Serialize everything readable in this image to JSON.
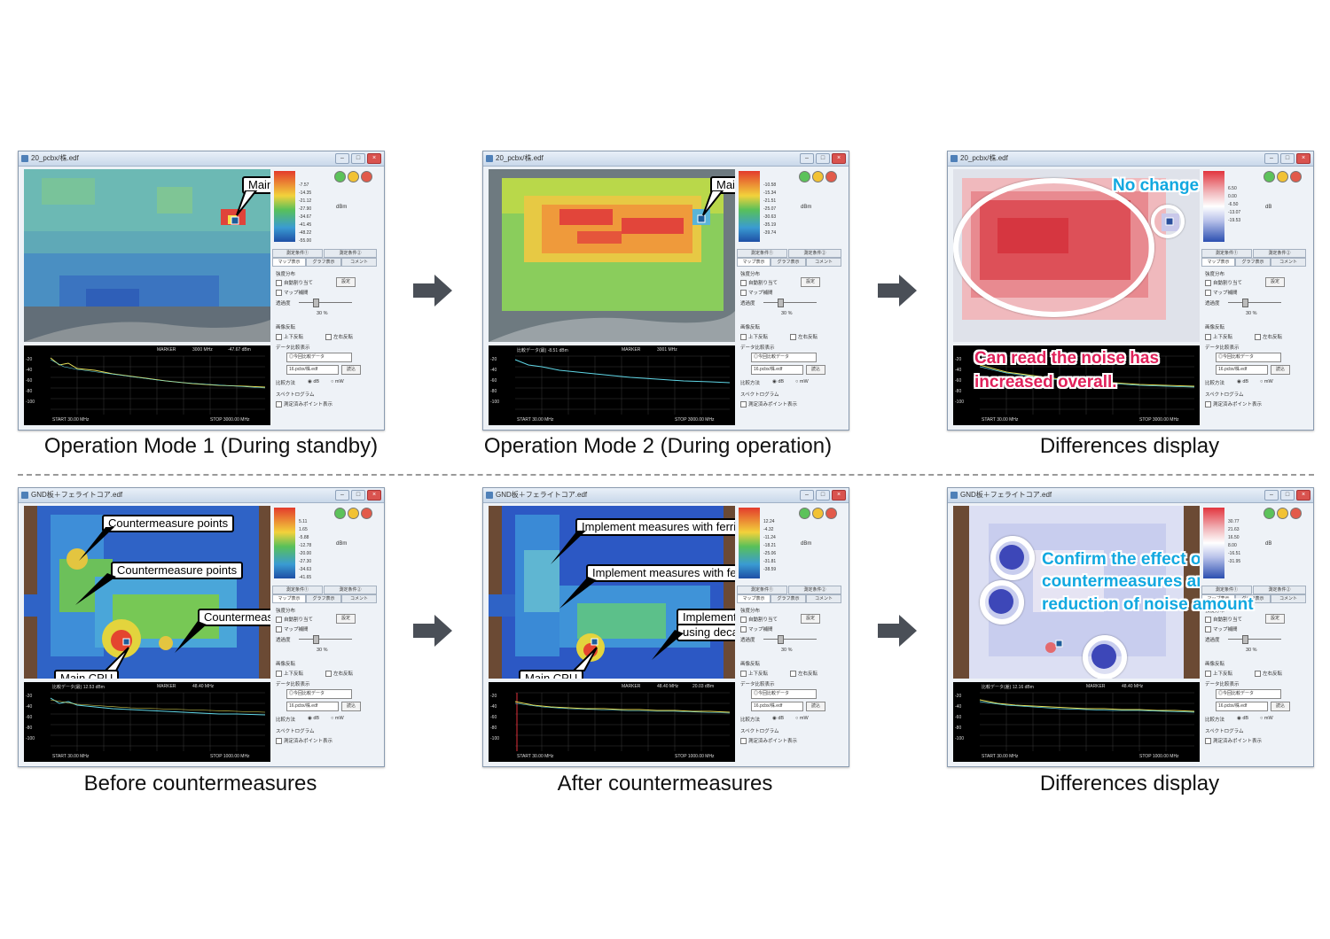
{
  "top_row": {
    "win1": {
      "title": "20_pcbx/株.edf",
      "caption": "Operation Mode 1 (During standby)",
      "callout": "Main CPU",
      "legend_vals": [
        "-7.57",
        "-14.35",
        "-21.12",
        "-27.90",
        "-34.67",
        "-41.45",
        "-48.22",
        "-55.00"
      ],
      "unit": "dBm",
      "spec_top": [
        "MARKER",
        "3000 MHz",
        "-47.67 dBm"
      ],
      "spec_bottom": [
        "START  30.00 MHz",
        "STOP  3000.00 MHz"
      ]
    },
    "win2": {
      "title": "20_pcbx/株.edf",
      "caption": "Operation Mode 2 (During operation)",
      "callout": "Main CPU",
      "legend_vals": [
        "-10.58",
        "-15.34",
        "-21.51",
        "-25.07",
        "-30.63",
        "-35.19",
        "-39.74"
      ],
      "unit": "dBm",
      "spec_top": [
        "比較データ(最)  -8.51 dBm",
        "MARKER",
        "3001 MHz"
      ],
      "spec_bottom": [
        "START  30.00 MHz",
        "STOP  3000.00 MHz"
      ]
    },
    "win3": {
      "title": "20_pcbx/株.edf",
      "caption": "Differences display",
      "label_a": "No change in CPU",
      "label_b": "Can read the noise has",
      "label_c": "increased overall.",
      "legend_vals": [
        "6.50",
        "0.00",
        "-6.50",
        "-13.07",
        "-19.53"
      ],
      "unit": "dB",
      "spec_bottom": [
        "START  30.00 MHz",
        "STOP  3000.00 MHz"
      ]
    }
  },
  "bottom_row": {
    "win4": {
      "title": "GND板＋フェライトコア.edf",
      "caption": "Before countermeasures",
      "callout_a": "Countermeasure points",
      "callout_b": "Countermeasure points",
      "callout_c": "Countermeasure points",
      "callout_cpu": "Main CPU",
      "legend_vals": [
        "5.11",
        "1.65",
        "-5.88",
        "-12.78",
        "-20.00",
        "-27.30",
        "-34.63",
        "-41.65"
      ],
      "unit": "dBm",
      "spec_top": [
        "比較データ(最)  12.53 dBm",
        "MARKER",
        "48.40 MHz"
      ],
      "spec_bottom": [
        "START  30.00 MHz",
        "STOP  1000.00 MHz"
      ]
    },
    "win5": {
      "title": "GND板＋フェライトコア.edf",
      "caption": "After countermeasures",
      "callout_a": "Implement measures with ferrite core",
      "callout_b": "Implement measures with ferrite core",
      "callout_c1": "Implemented measures",
      "callout_c2": "using decaps",
      "callout_cpu": "Main CPU",
      "legend_vals": [
        "12.24",
        "-4.32",
        "-11.24",
        "-18.21",
        "-25.06",
        "-31.81",
        "-38.59"
      ],
      "unit": "dBm",
      "spec_top": [
        "MARKER",
        "48.40 MHz",
        "20.03 dBm"
      ],
      "spec_bottom": [
        "START  30.00 MHz",
        "STOP  1000.00 MHz"
      ]
    },
    "win6": {
      "title": "GND板＋フェライトコア.edf",
      "caption": "Differences display",
      "label_1": "Confirm the effect of",
      "label_2": "countermeasures and",
      "label_3": "reduction of noise amount",
      "legend_vals": [
        "30.77",
        "21.63",
        "16.50",
        "8.00",
        "-16.51",
        "-31.95"
      ],
      "unit": "dB",
      "spec_top": [
        "比較データ(差)  12.16 dBm",
        "MARKER",
        "48.40 MHz"
      ],
      "spec_bottom": [
        "START  30.00 MHz",
        "STOP  1000.00 MHz"
      ]
    }
  },
  "panel": {
    "tabs_row1": [
      "測定条件①",
      "測定条件②"
    ],
    "tabs_row2": [
      "マップ表示",
      "グラフ表示",
      "コメント"
    ],
    "sec1": "強度分布",
    "chk_auto": "自動割り当て",
    "btn_set": "設定",
    "chk_map": "マップ補間",
    "opacity_label": "透過度",
    "opacity_val": "30 %",
    "sec2": "画像反転",
    "chk_ud": "上下反転",
    "chk_lr": "左右反転",
    "sec3": "データ比較表示",
    "select_val": "◎今回比較データ",
    "file_val": "16.pcbx/株.edf",
    "btn_load": "読込",
    "cmp_label": "比較方法",
    "radio_db": "dB",
    "radio_mw": "mW",
    "sec4": "スペクトログラム",
    "chk_peak": "測定済みポイント表示"
  },
  "y_ticks": [
    "0",
    "-20",
    "-40",
    "-60",
    "-80",
    "-100"
  ],
  "colors": {
    "accent_red": "#e0215a",
    "accent_cyan": "#12a8e0",
    "arrow": "#4a4f57"
  }
}
